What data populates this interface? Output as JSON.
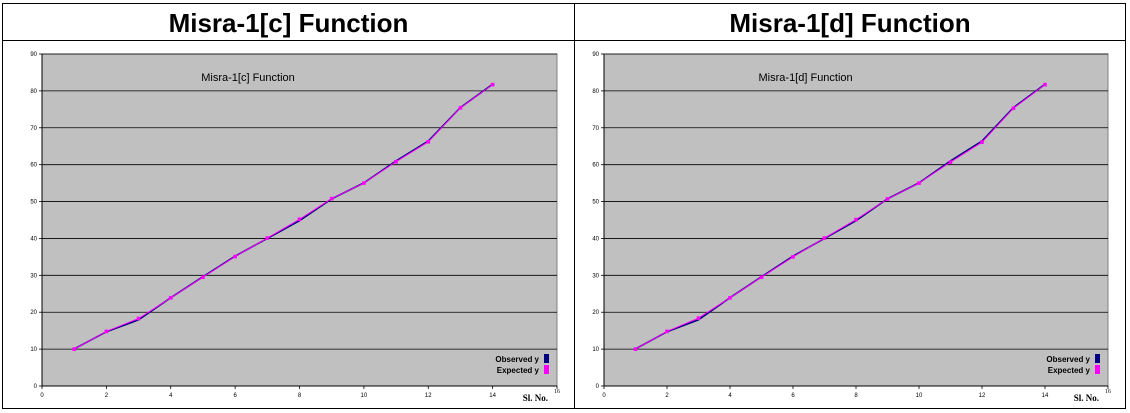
{
  "headings": [
    "Misra-1[c] Function",
    "Misra-1[d] Function"
  ],
  "chart_data": [
    {
      "type": "line",
      "title": "Misra-1[c] Function",
      "xlabel": "Sl. No.",
      "ylabel": "",
      "xlim": [
        0,
        16
      ],
      "ylim": [
        0,
        90
      ],
      "x_ticks": [
        0,
        2,
        4,
        6,
        8,
        10,
        12,
        14,
        16
      ],
      "y_ticks": [
        0,
        10,
        20,
        30,
        40,
        50,
        60,
        70,
        80,
        90
      ],
      "grid": "horizontal",
      "legend": "bottom-right",
      "plot_bg": "#c0c0c0",
      "x": [
        1,
        2,
        3,
        4,
        5,
        6,
        7,
        8,
        9,
        10,
        11,
        12,
        13,
        14
      ],
      "series": [
        {
          "name": "Observed y",
          "color": "#000080",
          "values": [
            10.07,
            14.73,
            17.94,
            23.93,
            29.61,
            35.18,
            40.02,
            44.82,
            50.76,
            55.05,
            61.01,
            66.4,
            75.47,
            81.78
          ]
        },
        {
          "name": "Expected y",
          "color": "#ff00ff",
          "values": [
            10.0,
            14.8,
            18.3,
            23.9,
            29.5,
            35.1,
            40.1,
            45.2,
            50.8,
            55.0,
            60.8,
            66.2,
            75.4,
            81.7
          ]
        }
      ]
    },
    {
      "type": "line",
      "title": "Misra-1[d] Function",
      "xlabel": "Sl. No.",
      "ylabel": "",
      "xlim": [
        0,
        16
      ],
      "ylim": [
        0,
        90
      ],
      "x_ticks": [
        0,
        2,
        4,
        6,
        8,
        10,
        12,
        14,
        16
      ],
      "y_ticks": [
        0,
        10,
        20,
        30,
        40,
        50,
        60,
        70,
        80,
        90
      ],
      "grid": "horizontal",
      "legend": "bottom-right",
      "plot_bg": "#c0c0c0",
      "x": [
        1,
        2,
        3,
        4,
        5,
        6,
        7,
        8,
        9,
        10,
        11,
        12,
        13,
        14
      ],
      "series": [
        {
          "name": "Observed y",
          "color": "#000080",
          "values": [
            10.07,
            14.73,
            17.94,
            23.93,
            29.61,
            35.18,
            40.02,
            44.82,
            50.76,
            55.05,
            61.01,
            66.4,
            75.47,
            81.78
          ]
        },
        {
          "name": "Expected y",
          "color": "#ff00ff",
          "values": [
            10.0,
            14.8,
            18.4,
            23.9,
            29.5,
            35.0,
            40.1,
            45.1,
            50.7,
            55.0,
            60.7,
            66.1,
            75.3,
            81.7
          ]
        }
      ]
    }
  ]
}
